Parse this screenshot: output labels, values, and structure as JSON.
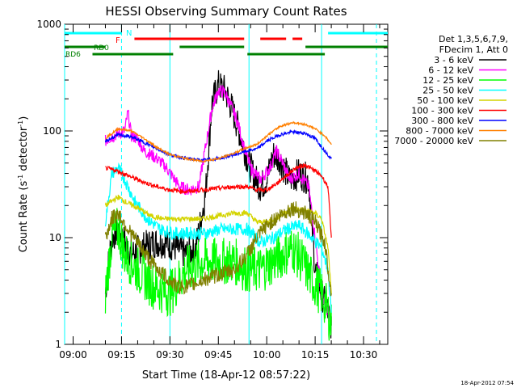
{
  "chart_data": {
    "type": "line",
    "title": "HESSI Observing Summary Count Rates",
    "xlabel": "Start Time (18-Apr-12 08:57:22)",
    "ylabel_main": "Count Rate (s",
    "ylabel_sup1": "-1",
    "ylabel_mid": " detector",
    "ylabel_sup2": "-1",
    "ylabel_end": ")",
    "y_scale": "log",
    "ylim": [
      1,
      1000
    ],
    "xlim": [
      "08:57:22",
      "10:37:30"
    ],
    "x_ticks": [
      "09:00",
      "09:15",
      "09:30",
      "09:45",
      "10:00",
      "10:15",
      "10:30"
    ],
    "y_ticks": [
      "1",
      "10",
      "100",
      "1000"
    ],
    "timestamp": "18-Apr-2012 07:54",
    "legend": {
      "header1": "Det 1,3,5,6,7,9,",
      "header2": "FDecim 1, Att 0",
      "entries": [
        {
          "label": "3 - 6 keV",
          "color": "#000000"
        },
        {
          "label": "6 - 12 keV",
          "color": "#ff00ff"
        },
        {
          "label": "12 - 25 keV",
          "color": "#00ff00"
        },
        {
          "label": "25 - 50 keV",
          "color": "#00ffff"
        },
        {
          "label": "50 - 100 keV",
          "color": "#d4d400"
        },
        {
          "label": "100 - 300 keV",
          "color": "#ff0000"
        },
        {
          "label": "300 - 800 keV",
          "color": "#0000ff"
        },
        {
          "label": "800 - 7000 keV",
          "color": "#ff8000"
        },
        {
          "label": "7000 - 20000 keV",
          "color": "#808000"
        }
      ]
    },
    "flag_labels": {
      "N": "N",
      "F": "F",
      "RD0": "RD0",
      "RD6": "RD6"
    },
    "flag_colors": {
      "N": "#00ffff",
      "F": "#ff0000",
      "RD": "#008000"
    },
    "flags": {
      "N": [
        [
          "08:57:22",
          "09:15:00"
        ],
        [
          "10:19:00",
          "10:37:30"
        ]
      ],
      "F": [
        [
          "09:19:00",
          "09:53:00"
        ],
        [
          "09:58:00",
          "10:06:00"
        ],
        [
          "10:08:00",
          "10:11:00"
        ]
      ],
      "RD0": [
        [
          "08:57:22",
          "09:10:00"
        ],
        [
          "09:33:00",
          "09:53:00"
        ],
        [
          "10:12:00",
          "10:37:30"
        ]
      ],
      "RD6": [
        [
          "09:06:00",
          "09:31:00"
        ],
        [
          "09:54:00",
          "10:18:00"
        ]
      ]
    },
    "vlines": [
      {
        "time": "08:57:22",
        "style": "solid"
      },
      {
        "time": "09:15:00",
        "style": "dashed"
      },
      {
        "time": "09:30:00",
        "style": "solid"
      },
      {
        "time": "09:54:30",
        "style": "solid"
      },
      {
        "time": "10:17:00",
        "style": "solid"
      },
      {
        "time": "10:34:00",
        "style": "dashed"
      }
    ],
    "series": [
      {
        "name": "3 - 6 keV",
        "color": "#000000",
        "noise": 0.3,
        "x": [
          "09:10:00",
          "09:11:00",
          "09:12:00",
          "09:14:00",
          "09:16:00",
          "09:18:00",
          "09:21:00",
          "09:25:00",
          "09:29:00",
          "09:32:00",
          "09:35:00",
          "09:38:00",
          "09:41:00",
          "09:43:00",
          "09:45:00",
          "09:47:00",
          "09:49:00",
          "09:51:00",
          "09:54:00",
          "09:56:00",
          "09:58:00",
          "10:00:00",
          "10:02:00",
          "10:04:00",
          "10:07:00",
          "10:10:00",
          "10:13:00",
          "10:15:00",
          "10:17:00",
          "10:19:00",
          "10:20:00"
        ],
        "y": [
          3,
          6,
          10,
          12,
          9,
          7,
          8,
          9,
          9,
          8,
          7,
          8,
          25,
          180,
          270,
          240,
          170,
          110,
          55,
          38,
          30,
          35,
          60,
          55,
          35,
          40,
          35,
          5,
          3,
          2,
          1.5
        ]
      },
      {
        "name": "6 - 12 keV",
        "color": "#ff00ff",
        "noise": 0.12,
        "x": [
          "09:10:00",
          "09:11:00",
          "09:14:00",
          "09:16:00",
          "09:17:00",
          "09:18:00",
          "09:20:00",
          "09:22:00",
          "09:24:00",
          "09:26:00",
          "09:29:00",
          "09:33:00",
          "09:36:00",
          "09:39:00",
          "09:41:00",
          "09:43:00",
          "09:45:00",
          "09:47:00",
          "09:49:00",
          "09:51:00",
          "09:53:00",
          "09:55:00",
          "09:58:00",
          "10:01:00",
          "10:03:00",
          "10:05:00",
          "10:07:00",
          "10:10:00",
          "10:13:00",
          "10:15:00",
          "10:17:00",
          "10:19:00",
          "10:20:00"
        ],
        "y": [
          80,
          85,
          95,
          100,
          150,
          90,
          85,
          65,
          60,
          55,
          45,
          30,
          28,
          30,
          70,
          160,
          240,
          230,
          170,
          120,
          70,
          45,
          35,
          45,
          65,
          50,
          35,
          40,
          30,
          10,
          3,
          2,
          1.5
        ]
      },
      {
        "name": "12 - 25 keV",
        "color": "#00ff00",
        "noise": 0.45,
        "x": [
          "09:10:00",
          "09:12:00",
          "09:14:00",
          "09:16:00",
          "09:20:00",
          "09:25:00",
          "09:30:00",
          "09:35:00",
          "09:40:00",
          "09:45:00",
          "09:50:00",
          "09:54:00",
          "09:58:00",
          "10:02:00",
          "10:05:00",
          "10:08:00",
          "10:11:00",
          "10:14:00",
          "10:17:00",
          "10:19:00",
          "10:20:00"
        ],
        "y": [
          3,
          10,
          12,
          7,
          5,
          3.5,
          3,
          5,
          6,
          6,
          6,
          5,
          5,
          6,
          7,
          8,
          6,
          4,
          3,
          2,
          1.5
        ]
      },
      {
        "name": "25 - 50 keV",
        "color": "#00ffff",
        "noise": 0.12,
        "x": [
          "09:10:00",
          "09:12:00",
          "09:14:00",
          "09:16:00",
          "09:19:00",
          "09:23:00",
          "09:27:00",
          "09:31:00",
          "09:36:00",
          "09:41:00",
          "09:46:00",
          "09:51:00",
          "09:54:00",
          "09:58:00",
          "10:02:00",
          "10:06:00",
          "10:10:00",
          "10:14:00",
          "10:17:00",
          "10:19:00",
          "10:20:00"
        ],
        "y": [
          14,
          40,
          45,
          35,
          22,
          15,
          12,
          11,
          11,
          11,
          12,
          12,
          12,
          9,
          10,
          12,
          13,
          10,
          8,
          5,
          2
        ]
      },
      {
        "name": "50 - 100 keV",
        "color": "#d4d400",
        "noise": 0.05,
        "x": [
          "09:10:00",
          "09:12:00",
          "09:14:00",
          "09:17:00",
          "09:20:00",
          "09:24:00",
          "09:28:00",
          "09:32:00",
          "09:36:00",
          "09:40:00",
          "09:45:00",
          "09:50:00",
          "09:54:00",
          "09:57:00",
          "10:00:00",
          "10:04:00",
          "10:08:00",
          "10:12:00",
          "10:15:00",
          "10:17:00",
          "10:19:00",
          "10:20:00"
        ],
        "y": [
          20,
          22,
          24,
          21,
          19,
          16,
          15,
          15,
          15,
          15,
          16,
          17,
          17,
          14,
          14,
          16,
          19,
          18,
          17,
          15,
          8,
          3
        ]
      },
      {
        "name": "100 - 300 keV",
        "color": "#ff0000",
        "noise": 0.04,
        "x": [
          "09:10:00",
          "09:14:00",
          "09:18:00",
          "09:22:00",
          "09:26:00",
          "09:30:00",
          "09:35:00",
          "09:40:00",
          "09:45:00",
          "09:50:00",
          "09:54:00",
          "09:57:00",
          "10:00:00",
          "10:03:00",
          "10:06:00",
          "10:09:00",
          "10:12:00",
          "10:15:00",
          "10:17:00",
          "10:19:00",
          "10:20:00"
        ],
        "y": [
          45,
          42,
          37,
          33,
          30,
          28,
          27,
          28,
          29,
          30,
          30,
          28,
          28,
          32,
          38,
          45,
          48,
          42,
          38,
          30,
          10
        ]
      },
      {
        "name": "300 - 800 keV",
        "color": "#0000ff",
        "noise": 0.03,
        "x": [
          "09:10:00",
          "09:14:00",
          "09:18:00",
          "09:22:00",
          "09:26:00",
          "09:30:00",
          "09:35:00",
          "09:40:00",
          "09:45:00",
          "09:50:00",
          "09:54:00",
          "09:57:00",
          "10:00:00",
          "10:04:00",
          "10:08:00",
          "10:12:00",
          "10:15:00",
          "10:18:00",
          "10:20:00"
        ],
        "y": [
          80,
          92,
          88,
          78,
          68,
          60,
          55,
          53,
          55,
          60,
          65,
          68,
          80,
          92,
          98,
          95,
          85,
          65,
          55
        ]
      },
      {
        "name": "800 - 7000 keV",
        "color": "#ff8000",
        "noise": 0.02,
        "x": [
          "09:10:00",
          "09:14:00",
          "09:18:00",
          "09:22:00",
          "09:26:00",
          "09:30:00",
          "09:35:00",
          "09:40:00",
          "09:45:00",
          "09:50:00",
          "09:54:00",
          "09:57:00",
          "10:00:00",
          "10:04:00",
          "10:08:00",
          "10:12:00",
          "10:15:00",
          "10:18:00",
          "10:20:00"
        ],
        "y": [
          85,
          105,
          100,
          85,
          70,
          60,
          55,
          52,
          55,
          62,
          70,
          75,
          90,
          110,
          120,
          115,
          105,
          90,
          75
        ]
      },
      {
        "name": "7000 - 20000 keV",
        "color": "#808000",
        "noise": 0.15,
        "x": [
          "09:10:00",
          "09:12:00",
          "09:14:00",
          "09:17:00",
          "09:20:00",
          "09:24:00",
          "09:28:00",
          "09:32:00",
          "09:36:00",
          "09:40:00",
          "09:45:00",
          "09:50:00",
          "09:54:00",
          "09:57:00",
          "10:00:00",
          "10:04:00",
          "10:08:00",
          "10:12:00",
          "10:15:00",
          "10:18:00",
          "10:20:00"
        ],
        "y": [
          10,
          15,
          17,
          12,
          9,
          6,
          4.5,
          3.5,
          3.5,
          4,
          4.5,
          5,
          7,
          10,
          13,
          16,
          19,
          17,
          14,
          9,
          3
        ]
      }
    ]
  }
}
